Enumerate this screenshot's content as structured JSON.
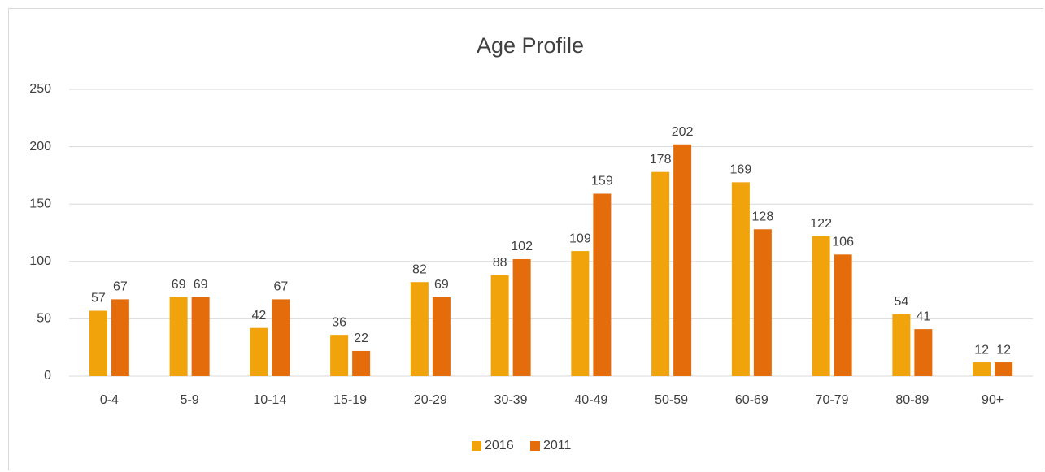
{
  "chart_data": {
    "type": "bar",
    "title": "Age Profile",
    "categories": [
      "0-4",
      "5-9",
      "10-14",
      "15-19",
      "20-29",
      "30-39",
      "40-49",
      "50-59",
      "60-69",
      "70-79",
      "80-89",
      "90+"
    ],
    "series": [
      {
        "name": "2016",
        "color": "#f0a30a",
        "values": [
          57,
          69,
          42,
          36,
          82,
          88,
          109,
          178,
          169,
          122,
          54,
          12
        ]
      },
      {
        "name": "2011",
        "color": "#e46c0a",
        "values": [
          67,
          69,
          67,
          22,
          69,
          102,
          159,
          202,
          128,
          106,
          41,
          12
        ]
      }
    ],
    "ylim": [
      0,
      250
    ],
    "yticks": [
      0,
      50,
      100,
      150,
      200,
      250
    ],
    "grid": true,
    "legend": "bottom"
  }
}
